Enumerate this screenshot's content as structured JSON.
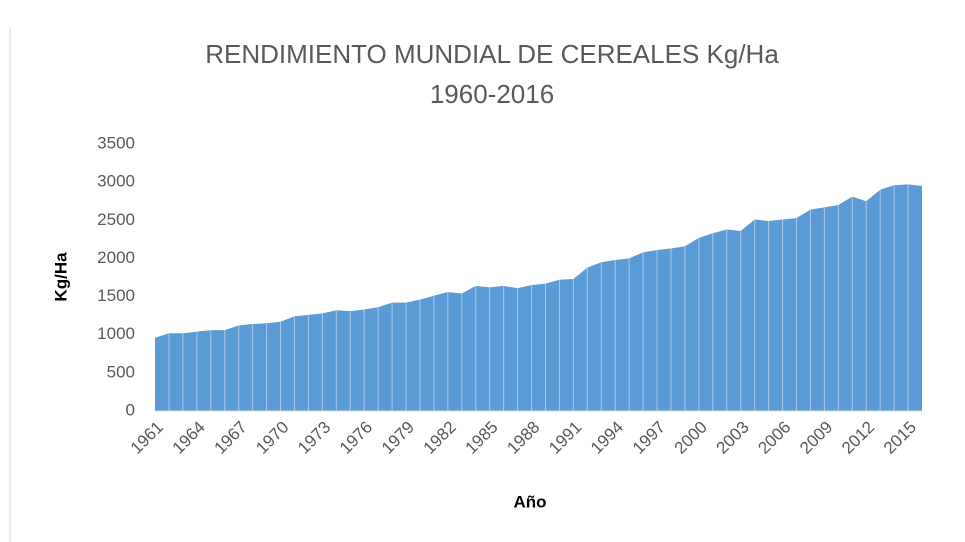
{
  "chart_data": {
    "type": "area",
    "title": "RENDIMIENTO MUNDIAL DE CEREALES  Kg/Ha",
    "subtitle": "1960-2016",
    "x_label": "Año",
    "y_label": "Kg/Ha",
    "categories": [
      "1961",
      null,
      null,
      "1964",
      null,
      null,
      "1967",
      null,
      null,
      "1970",
      null,
      null,
      "1973",
      null,
      null,
      "1976",
      null,
      null,
      "1979",
      null,
      null,
      "1982",
      null,
      null,
      "1985",
      null,
      null,
      "1988",
      null,
      null,
      "1991",
      null,
      null,
      "1994",
      null,
      null,
      "1997",
      null,
      null,
      "2000",
      null,
      null,
      "2003",
      null,
      null,
      "2006",
      null,
      null,
      "2009",
      null,
      null,
      "2012",
      null,
      null,
      "2015",
      null
    ],
    "values": [
      960,
      1020,
      1020,
      1040,
      1060,
      1060,
      1120,
      1140,
      1150,
      1170,
      1240,
      1260,
      1280,
      1320,
      1310,
      1330,
      1360,
      1420,
      1420,
      1460,
      1510,
      1560,
      1540,
      1640,
      1620,
      1640,
      1610,
      1650,
      1670,
      1720,
      1730,
      1880,
      1950,
      1980,
      2000,
      2080,
      2110,
      2130,
      2160,
      2270,
      2330,
      2380,
      2360,
      2510,
      2490,
      2510,
      2530,
      2640,
      2670,
      2700,
      2810,
      2750,
      2900,
      2960,
      2970,
      2950
    ],
    "color": "#5b9bd5",
    "ylim": [
      0,
      3500
    ],
    "yticks": [
      0,
      500,
      1000,
      1500,
      2000,
      2500,
      3000,
      3500
    ]
  }
}
